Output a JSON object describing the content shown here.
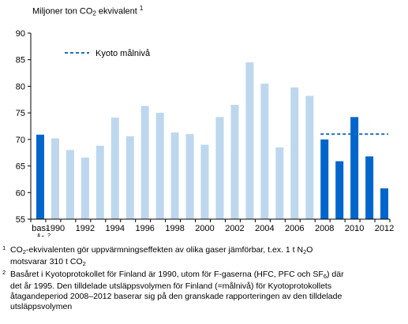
{
  "chart_data": {
    "type": "bar",
    "title": "",
    "ylabel_parts": {
      "pre": "Miljoner ton CO",
      "sub": "2",
      "post": " ekvivalent ",
      "sup": "1"
    },
    "ylim": [
      55,
      90
    ],
    "yticks": [
      55,
      60,
      65,
      70,
      75,
      80,
      85,
      90
    ],
    "grid": false,
    "legend_position": "top-left",
    "categories": [
      "bas-år",
      "1990",
      "1991",
      "1992",
      "1993",
      "1994",
      "1995",
      "1996",
      "1997",
      "1998",
      "1999",
      "2000",
      "2001",
      "2002",
      "2003",
      "2004",
      "2005",
      "2006",
      "2007",
      "2008",
      "2009",
      "2010",
      "2011",
      "2012"
    ],
    "xtick_labels": [
      {
        "line1": "bas-",
        "line2": "år",
        "sup": "2",
        "cat": 0
      },
      {
        "text": "1990",
        "cat": 1
      },
      {
        "text": "1992",
        "cat": 3
      },
      {
        "text": "1994",
        "cat": 5
      },
      {
        "text": "1996",
        "cat": 7
      },
      {
        "text": "1998",
        "cat": 9
      },
      {
        "text": "2000",
        "cat": 11
      },
      {
        "text": "2002",
        "cat": 13
      },
      {
        "text": "2004",
        "cat": 15
      },
      {
        "text": "2006",
        "cat": 17
      },
      {
        "text": "2008",
        "cat": 19
      },
      {
        "text": "2010",
        "cat": 21
      },
      {
        "text": "2012",
        "cat": 23
      }
    ],
    "values": [
      70.9,
      70.2,
      68.0,
      66.6,
      68.8,
      74.1,
      70.6,
      76.3,
      75.0,
      71.3,
      71.0,
      69.0,
      74.2,
      76.5,
      84.5,
      80.5,
      68.5,
      79.8,
      78.2,
      70.0,
      65.9,
      74.2,
      66.8,
      60.8
    ],
    "bar_groups": [
      0,
      1,
      1,
      1,
      1,
      1,
      1,
      1,
      1,
      1,
      1,
      1,
      1,
      1,
      1,
      1,
      1,
      1,
      1,
      0,
      0,
      0,
      0,
      0
    ],
    "colors": {
      "dark": "#0066cc",
      "light": "#bdd7ee",
      "target": "#1f6fc0",
      "axis": "#000000"
    },
    "target_line": {
      "name": "Kyoto målnivå",
      "value": 71.0,
      "from_cat": 19,
      "to_cat": 23
    }
  },
  "footnotes": [
    {
      "mark": "1",
      "parts": [
        {
          "t": "CO"
        },
        {
          "sub": "2"
        },
        {
          "t": "-ekvivalenten gör  uppvärmningseffekten av olika gaser jämförbar, t.ex. 1 t N"
        },
        {
          "sub": "2"
        },
        {
          "t": "O"
        },
        {
          "br": true
        },
        {
          "t": "motsvarar 310 t CO"
        },
        {
          "sub": "2"
        }
      ]
    },
    {
      "mark": "2",
      "parts": [
        {
          "t": "Basåret i Kyotoprotokollet för Finland är 1990, utom för F-gaserna (HFC, PFC och SF"
        },
        {
          "sub": "6"
        },
        {
          "t": ")  där"
        },
        {
          "br": true
        },
        {
          "t": "det år 1995. Den tilldelade utsläppsvolymen för Finland (=målnivå)  för Kyotoprotokollets"
        },
        {
          "br": true
        },
        {
          "t": "åtagandeperiod 2008–2012 baserar sig på den granskade rapporteringen av den tilldelade"
        },
        {
          "br": true
        },
        {
          "t": "utsläppsvolymen"
        }
      ]
    }
  ]
}
